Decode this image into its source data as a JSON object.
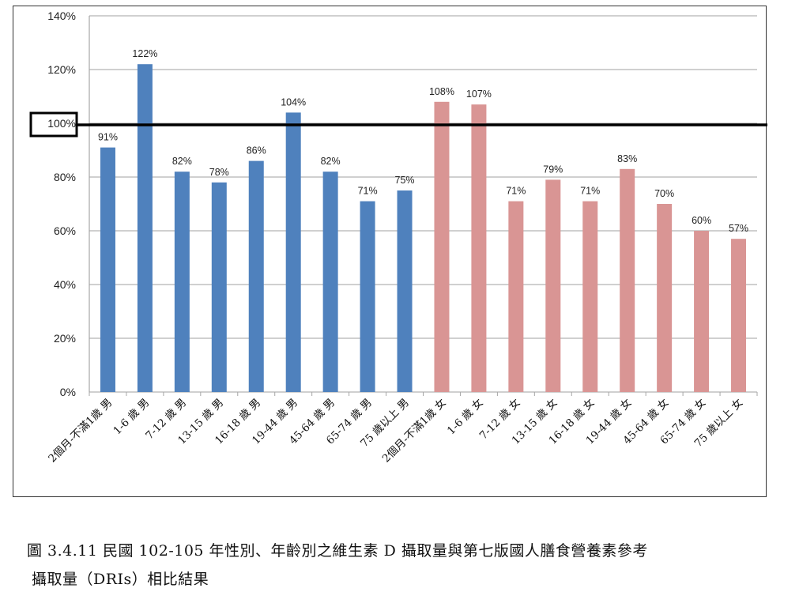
{
  "chart_data": {
    "type": "bar",
    "title": "",
    "xlabel": "",
    "ylabel": "",
    "ylim": [
      0,
      1.4
    ],
    "yticks": [
      "0%",
      "20%",
      "40%",
      "60%",
      "80%",
      "100%",
      "120%",
      "140%"
    ],
    "grid": true,
    "legend": null,
    "reference_line": {
      "value": 1.0,
      "label": "100%",
      "color": "#000000",
      "boxed_label": true
    },
    "categories": [
      "2個月-不滿1歲 男",
      "1-6 歲 男",
      "7-12 歲 男",
      "13-15 歲 男",
      "16-18 歲 男",
      "19-44 歲 男",
      "45-64 歲 男",
      "65-74 歲 男",
      "75 歲以上 男",
      "2個月-不滿1歲 女",
      "1-6 歲 女",
      "7-12 歲 女",
      "13-15 歲 女",
      "16-18 歲 女",
      "19-44 歲 女",
      "45-64 歲 女",
      "65-74 歲 女",
      "75 歲以上 女"
    ],
    "values": [
      0.91,
      1.22,
      0.82,
      0.78,
      0.86,
      1.04,
      0.82,
      0.71,
      0.75,
      1.08,
      1.07,
      0.71,
      0.79,
      0.71,
      0.83,
      0.7,
      0.6,
      0.57
    ],
    "data_labels": [
      "91%",
      "122%",
      "82%",
      "78%",
      "86%",
      "104%",
      "82%",
      "71%",
      "75%",
      "108%",
      "107%",
      "71%",
      "79%",
      "71%",
      "83%",
      "70%",
      "60%",
      "57%"
    ],
    "series_groups": [
      {
        "name": "男",
        "indices": [
          0,
          8
        ],
        "color": "#4F81BD"
      },
      {
        "name": "女",
        "indices": [
          9,
          17
        ],
        "color": "#D99594"
      }
    ]
  },
  "caption": {
    "line1": "圖 3.4.11 民國 102-105 年性別、年齡別之維生素 D 攝取量與第七版國人膳食營養素參考",
    "line2": "攝取量（DRIs）相比結果"
  }
}
